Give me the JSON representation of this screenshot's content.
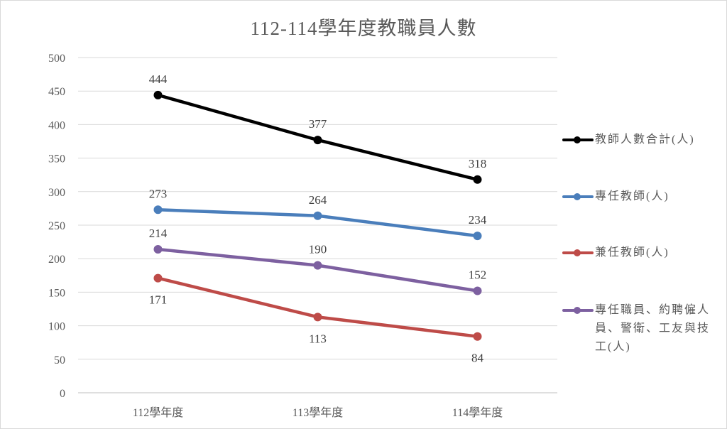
{
  "chart_data": {
    "type": "line",
    "title": "112-114學年度教職員人數",
    "categories": [
      "112學年度",
      "113學年度",
      "114學年度"
    ],
    "series": [
      {
        "name": "教師人數合計(人)",
        "color": "#000000",
        "values": [
          444,
          377,
          318
        ]
      },
      {
        "name": "專任教師(人)",
        "color": "#4a7ebb",
        "values": [
          273,
          264,
          234
        ]
      },
      {
        "name": "兼任教師(人)",
        "color": "#be4b48",
        "values": [
          171,
          113,
          84
        ]
      },
      {
        "name": "專任職員、約聘僱人員、警衛、工友與技工(人)",
        "color": "#7d60a0",
        "values": [
          214,
          190,
          152
        ]
      }
    ],
    "xlabel": "",
    "ylabel": "",
    "ylim": [
      0,
      500
    ],
    "yticks": [
      0,
      50,
      100,
      150,
      200,
      250,
      300,
      350,
      400,
      450,
      500
    ],
    "grid": true,
    "legend_position": "right",
    "data_labels": true
  },
  "header": {
    "title": "112-114學年度教職員人數"
  },
  "yaxis": {
    "ticks": [
      "0",
      "50",
      "100",
      "150",
      "200",
      "250",
      "300",
      "350",
      "400",
      "450",
      "500"
    ]
  },
  "xaxis": {
    "ticks": [
      "112學年度",
      "113學年度",
      "114學年度"
    ]
  },
  "legend": {
    "items": [
      {
        "label": "教師人數合計(人)",
        "color": "#000000"
      },
      {
        "label": "專任教師(人)",
        "color": "#4a7ebb"
      },
      {
        "label": "兼任教師(人)",
        "color": "#be4b48"
      },
      {
        "label": "專任職員、約聘僱人員、警衛、工友與技工(人)",
        "color": "#7d60a0"
      }
    ]
  }
}
